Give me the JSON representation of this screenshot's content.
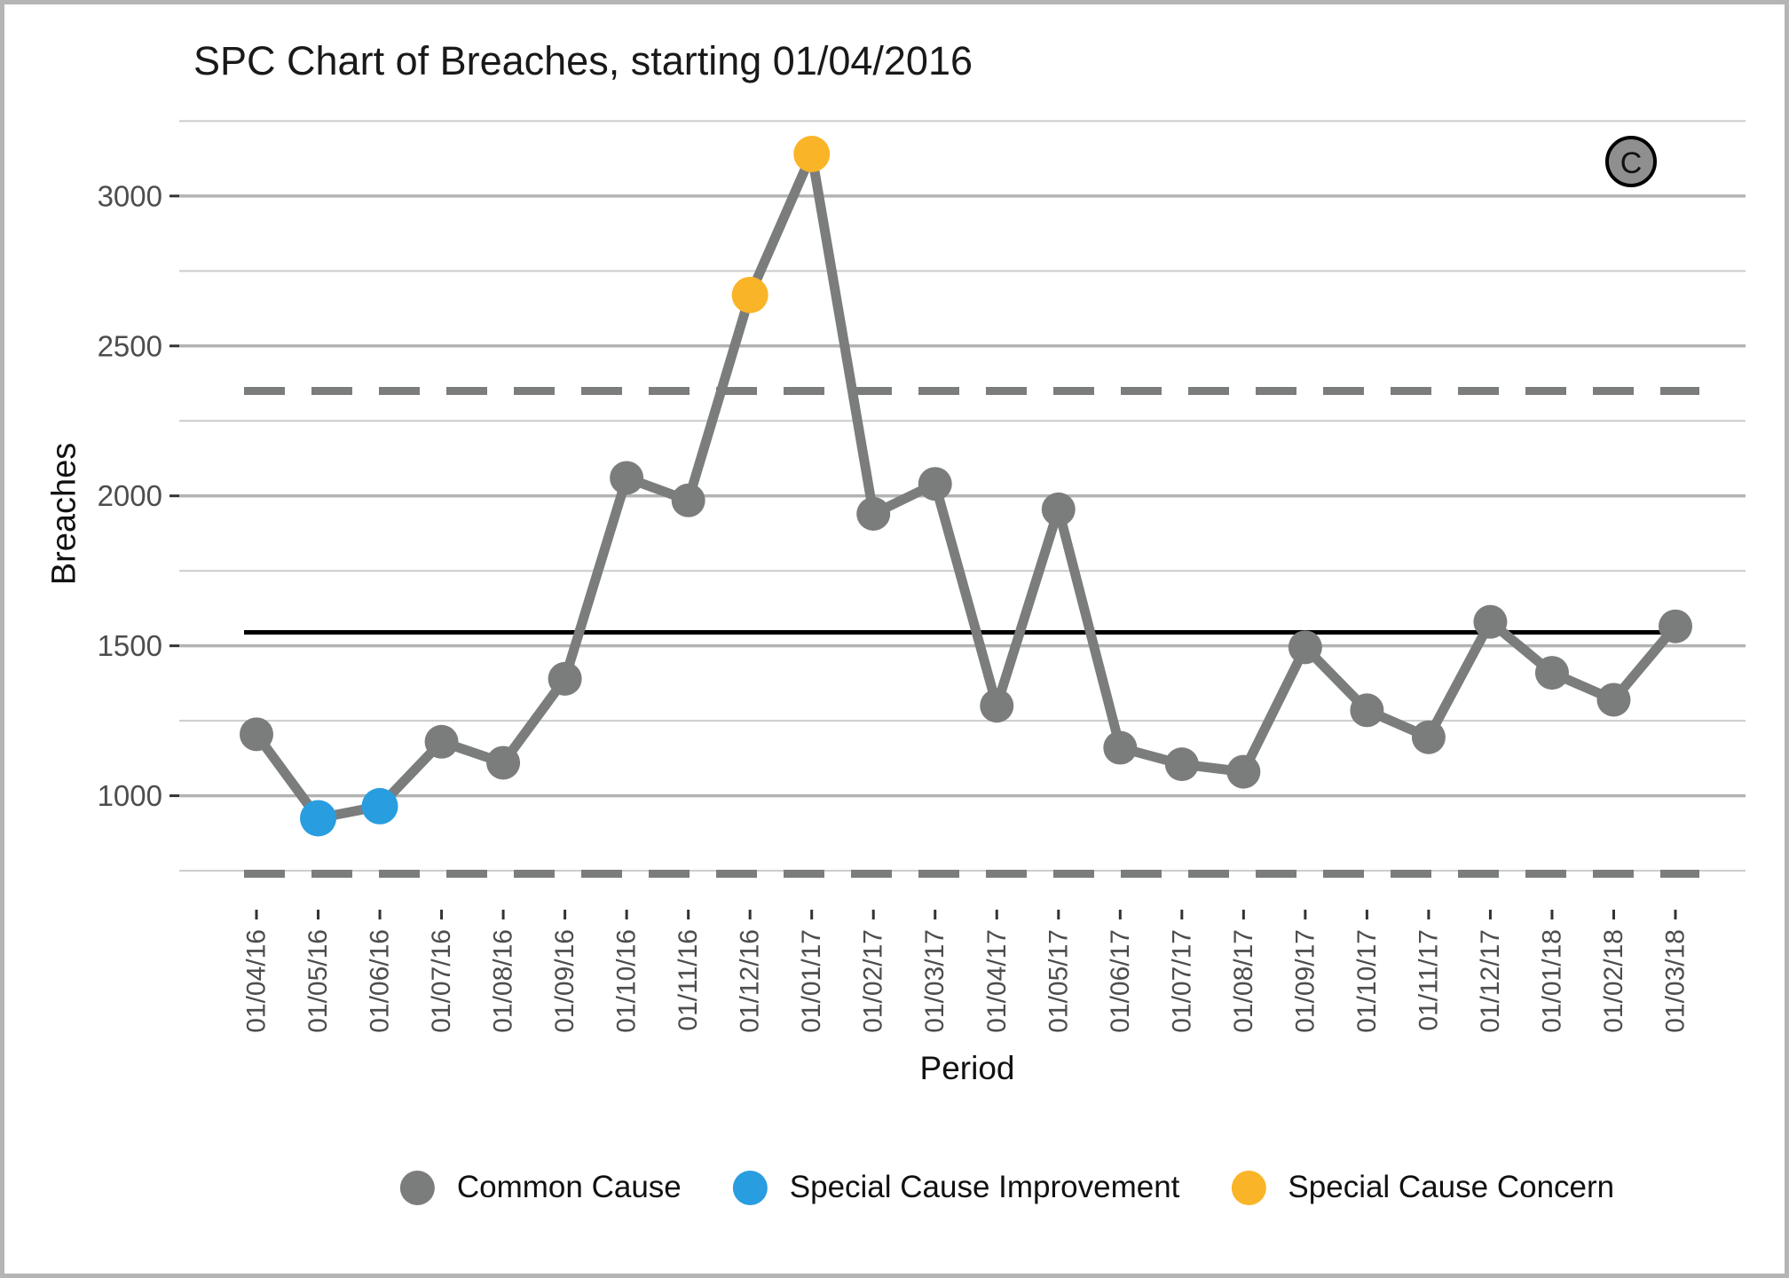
{
  "window": {
    "background_color": "#ffffff",
    "border_color": "#b5b5b5"
  },
  "chart_data": {
    "type": "line",
    "title": "SPC Chart of Breaches, starting 01/04/2016",
    "xlabel": "Period",
    "ylabel": "Breaches",
    "ylim": [
      620,
      3260
    ],
    "y_ticks": [
      1000,
      1500,
      2000,
      2500,
      3000
    ],
    "y_minor_gridlines": [
      750,
      1250,
      1750,
      2250,
      2750,
      3250
    ],
    "grid": "horizontal-only",
    "legend_position": "bottom",
    "categories": [
      "01/04/16",
      "01/05/16",
      "01/06/16",
      "01/07/16",
      "01/08/16",
      "01/09/16",
      "01/10/16",
      "01/11/16",
      "01/12/16",
      "01/01/17",
      "01/02/17",
      "01/03/17",
      "01/04/17",
      "01/05/17",
      "01/06/17",
      "01/07/17",
      "01/08/17",
      "01/09/17",
      "01/10/17",
      "01/11/17",
      "01/12/17",
      "01/01/18",
      "01/02/18",
      "01/03/18"
    ],
    "series": [
      {
        "name": "Breaches",
        "values": [
          1205,
          925,
          965,
          1180,
          1110,
          1390,
          2060,
          1985,
          2670,
          3140,
          1940,
          2040,
          1300,
          1955,
          1160,
          1105,
          1080,
          1495,
          1285,
          1195,
          1580,
          1410,
          1320,
          1565
        ]
      }
    ],
    "point_types": [
      "common",
      "improvement",
      "improvement",
      "common",
      "common",
      "common",
      "common",
      "common",
      "concern",
      "concern",
      "common",
      "common",
      "common",
      "common",
      "common",
      "common",
      "common",
      "common",
      "common",
      "common",
      "common",
      "common",
      "common",
      "common"
    ],
    "control_lines": {
      "center": 1545,
      "upper": 2350,
      "lower": 740,
      "center_style": "solid-black",
      "limit_style": "dashed-grey"
    },
    "annotation_badge": "C",
    "legend": [
      {
        "label": "Common Cause",
        "color": "#7b7d7d"
      },
      {
        "label": "Special Cause Improvement",
        "color": "#289de0"
      },
      {
        "label": "Special Cause Concern",
        "color": "#fab428"
      }
    ],
    "colors": {
      "line": "#7b7d7d",
      "common_cause": "#7b7d7d",
      "special_cause_improvement": "#289de0",
      "special_cause_concern": "#fab428",
      "center_line": "#000000",
      "control_limit": "#7b7d7d",
      "gridline_major": "#b3b3b3",
      "gridline_minor": "#cccccc",
      "axis_text": "#4d4d4d",
      "badge_fill": "#8f8f8f"
    }
  }
}
